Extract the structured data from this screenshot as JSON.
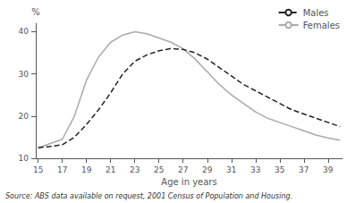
{
  "chart_data": {
    "type": "line",
    "x": [
      15,
      16,
      17,
      18,
      19,
      20,
      21,
      22,
      23,
      24,
      25,
      26,
      27,
      28,
      29,
      30,
      31,
      32,
      33,
      34,
      35,
      36,
      37,
      38,
      39,
      40
    ],
    "series": [
      {
        "name": "Females",
        "color": "#aaaaaa",
        "line_style": "solid",
        "values": [
          12.5,
          13.5,
          14.5,
          20.0,
          28.5,
          34.0,
          37.5,
          39.2,
          40.0,
          39.5,
          38.5,
          37.5,
          36.0,
          33.5,
          30.5,
          27.5,
          25.0,
          23.0,
          21.0,
          19.5,
          18.5,
          17.5,
          16.5,
          15.5,
          14.8,
          14.3
        ]
      },
      {
        "name": "Males",
        "color": "#222222",
        "line_style": "dashed",
        "values": [
          12.5,
          12.8,
          13.2,
          15.0,
          18.0,
          21.5,
          25.5,
          30.0,
          33.0,
          34.5,
          35.5,
          36.0,
          35.8,
          35.0,
          33.5,
          31.5,
          29.5,
          27.5,
          26.0,
          24.5,
          23.0,
          21.5,
          20.5,
          19.5,
          18.5,
          17.5
        ]
      }
    ],
    "xlabel": "Age in years",
    "ylabel": "%",
    "xlim": [
      14.8,
      40.2
    ],
    "ylim": [
      10,
      42
    ],
    "xticks": [
      15,
      17,
      19,
      21,
      23,
      25,
      27,
      29,
      31,
      33,
      35,
      37,
      39
    ],
    "yticks": [
      10,
      20,
      30,
      40
    ],
    "grid": false,
    "legend": "upper right",
    "annotation": "Source: ABS data available on request, 2001 Census of Population and Housing."
  }
}
